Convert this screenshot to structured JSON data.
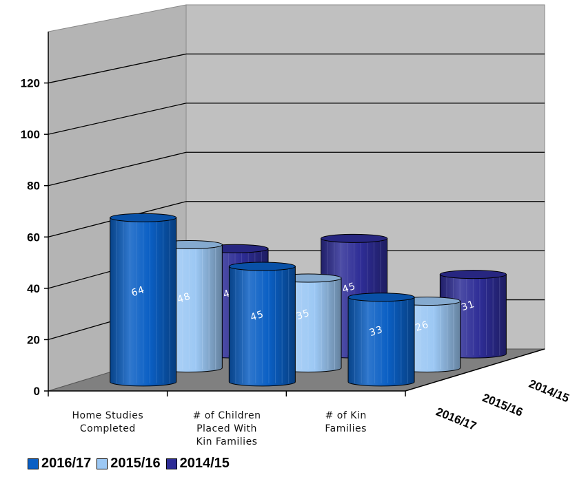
{
  "chart_data": {
    "type": "bar",
    "three_d": true,
    "categories": [
      "Home Studies Completed",
      "# of Children Placed With Kin Families",
      "# of Kin Families"
    ],
    "category_lines": [
      [
        "Home Studies",
        "Completed"
      ],
      [
        "# of Children",
        "Placed With",
        "Kin Families"
      ],
      [
        "# of Kin",
        "Families"
      ]
    ],
    "series": [
      {
        "name": "2016/17",
        "values": [
          64,
          45,
          33
        ],
        "color": "#0a5fc4"
      },
      {
        "name": "2015/16",
        "values": [
          48,
          35,
          26
        ],
        "color": "#9cc8f4"
      },
      {
        "name": "2014/15",
        "values": [
          41,
          45,
          31
        ],
        "color": "#2e2d96"
      }
    ],
    "yticks": [
      "0",
      "20",
      "40",
      "60",
      "80",
      "100",
      "120"
    ],
    "ylim": [
      0,
      140
    ],
    "grid": true,
    "wall_color": "#c0c0c0",
    "floor_color": "#808080",
    "legend_position": "bottom-left"
  }
}
